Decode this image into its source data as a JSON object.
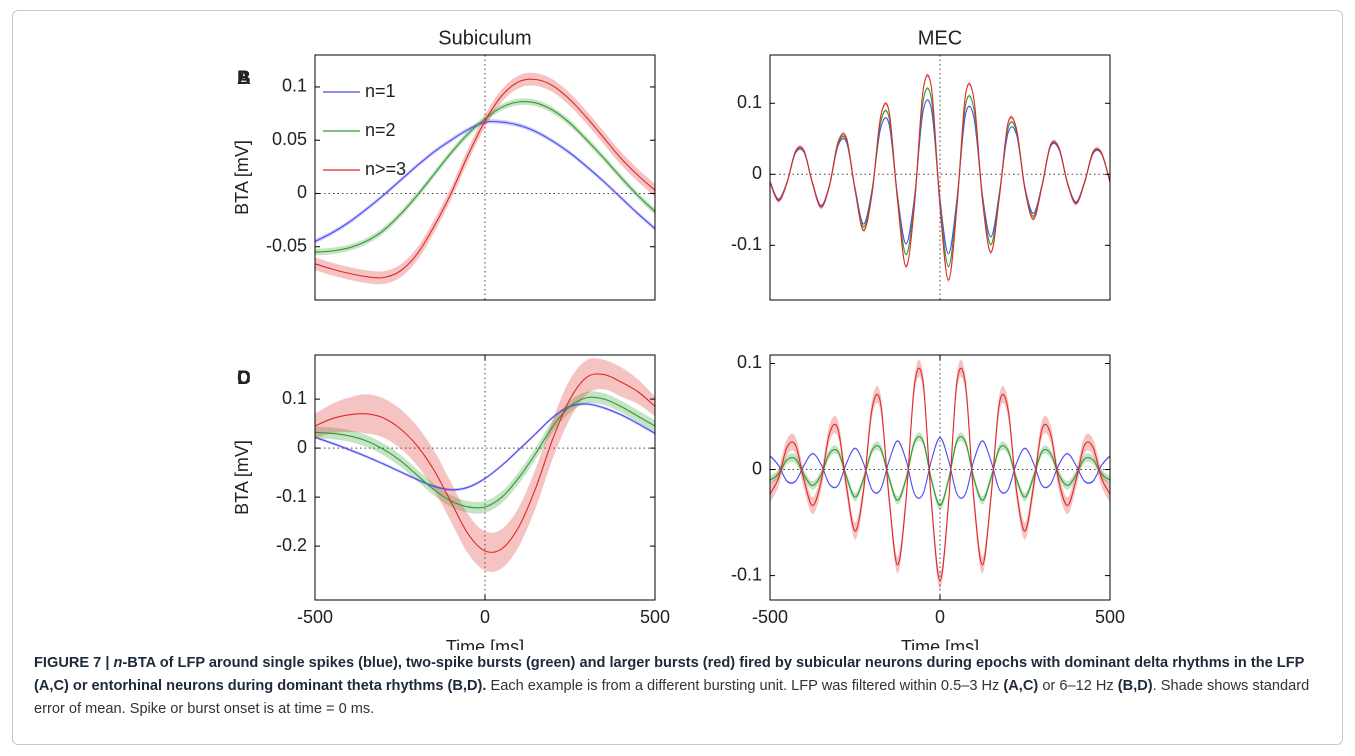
{
  "chart_data": [
    {
      "type": "line",
      "panel_label": "A",
      "title": "Subiculum",
      "ylabel": "BTA [mV]",
      "x": [
        -500,
        -450,
        -400,
        -350,
        -300,
        -250,
        -200,
        -150,
        -100,
        -50,
        0,
        50,
        100,
        150,
        200,
        250,
        300,
        350,
        400,
        450,
        500
      ],
      "xlim": [
        -500,
        500
      ],
      "ylim": [
        -0.1,
        0.13
      ],
      "yticks": [
        -0.05,
        0,
        0.05,
        0.1
      ],
      "zero_lines": true,
      "legend": "upper left",
      "series": [
        {
          "name": "n=1",
          "color": "#4b4bf5",
          "se": 0.002,
          "values": [
            -0.045,
            -0.037,
            -0.027,
            -0.015,
            -0.002,
            0.012,
            0.026,
            0.039,
            0.05,
            0.06,
            0.067,
            0.067,
            0.064,
            0.058,
            0.049,
            0.038,
            0.025,
            0.011,
            -0.004,
            -0.019,
            -0.033
          ]
        },
        {
          "name": "n=2",
          "color": "#2f9a2f",
          "se": 0.003,
          "values": [
            -0.055,
            -0.054,
            -0.051,
            -0.045,
            -0.035,
            -0.02,
            -0.002,
            0.018,
            0.038,
            0.056,
            0.07,
            0.081,
            0.086,
            0.085,
            0.078,
            0.066,
            0.05,
            0.033,
            0.015,
            -0.002,
            -0.017
          ]
        },
        {
          "name": "n>=3",
          "color": "#e02828",
          "se": 0.006,
          "values": [
            -0.066,
            -0.071,
            -0.075,
            -0.078,
            -0.079,
            -0.073,
            -0.057,
            -0.031,
            0.0,
            0.036,
            0.068,
            0.092,
            0.105,
            0.107,
            0.101,
            0.088,
            0.071,
            0.052,
            0.033,
            0.017,
            0.003
          ]
        }
      ]
    },
    {
      "type": "line",
      "panel_label": "B",
      "title": "MEC",
      "x": [
        -500,
        -475,
        -450,
        -425,
        -400,
        -375,
        -350,
        -325,
        -300,
        -275,
        -250,
        -225,
        -200,
        -175,
        -150,
        -125,
        -100,
        -75,
        -50,
        -25,
        0,
        25,
        50,
        75,
        100,
        125,
        150,
        175,
        200,
        225,
        250,
        275,
        300,
        325,
        350,
        375,
        400,
        425,
        450,
        475,
        500
      ],
      "xlim": [
        -500,
        500
      ],
      "ylim": [
        -0.177,
        0.168
      ],
      "yticks": [
        -0.1,
        0,
        0.1
      ],
      "zero_lines": true,
      "series": [
        {
          "color": "#4b4bf5",
          "se": 0.001,
          "values": [
            -0.01,
            -0.035,
            -0.011,
            0.03,
            0.031,
            -0.012,
            -0.044,
            -0.015,
            0.04,
            0.045,
            -0.019,
            -0.07,
            -0.022,
            0.064,
            0.071,
            -0.03,
            -0.098,
            -0.032,
            0.088,
            0.091,
            -0.035,
            -0.112,
            -0.034,
            0.084,
            0.079,
            -0.03,
            -0.088,
            -0.025,
            0.058,
            0.056,
            -0.019,
            -0.055,
            -0.015,
            0.039,
            0.035,
            -0.012,
            -0.039,
            -0.011,
            0.029,
            0.029,
            -0.01
          ]
        },
        {
          "color": "#2f9a2f",
          "se": 0.002,
          "values": [
            -0.011,
            -0.037,
            -0.012,
            0.032,
            0.033,
            -0.013,
            -0.046,
            -0.016,
            0.042,
            0.048,
            -0.021,
            -0.074,
            -0.025,
            0.072,
            0.08,
            -0.033,
            -0.113,
            -0.037,
            0.102,
            0.105,
            -0.04,
            -0.13,
            -0.039,
            0.097,
            0.091,
            -0.033,
            -0.099,
            -0.028,
            0.065,
            0.06,
            -0.021,
            -0.059,
            -0.016,
            0.041,
            0.037,
            -0.013,
            -0.041,
            -0.012,
            0.031,
            0.03,
            -0.011
          ]
        },
        {
          "color": "#e02828",
          "se": 0.003,
          "values": [
            -0.011,
            -0.037,
            -0.012,
            0.032,
            0.033,
            -0.013,
            -0.046,
            -0.016,
            0.045,
            0.051,
            -0.022,
            -0.079,
            -0.028,
            0.08,
            0.089,
            -0.037,
            -0.13,
            -0.043,
            0.117,
            0.121,
            -0.046,
            -0.149,
            -0.045,
            0.112,
            0.105,
            -0.037,
            -0.11,
            -0.031,
            0.072,
            0.064,
            -0.022,
            -0.063,
            -0.017,
            0.041,
            0.037,
            -0.013,
            -0.041,
            -0.012,
            0.031,
            0.03,
            -0.011
          ]
        }
      ]
    },
    {
      "type": "line",
      "panel_label": "C",
      "ylabel": "BTA [mV]",
      "xlabel": "Time [ms]",
      "x": [
        -500,
        -450,
        -400,
        -350,
        -300,
        -250,
        -200,
        -150,
        -100,
        -50,
        0,
        50,
        100,
        150,
        200,
        250,
        300,
        350,
        400,
        450,
        500
      ],
      "xlim": [
        -500,
        500
      ],
      "ylim": [
        -0.31,
        0.19
      ],
      "yticks": [
        -0.2,
        -0.1,
        0,
        0.1
      ],
      "xticks": [
        -500,
        0,
        500
      ],
      "zero_lines": true,
      "series": [
        {
          "color": "#4b4bf5",
          "se": 0.003,
          "values": [
            0.022,
            0.01,
            -0.003,
            -0.017,
            -0.032,
            -0.048,
            -0.064,
            -0.078,
            -0.085,
            -0.08,
            -0.062,
            -0.035,
            -0.003,
            0.03,
            0.063,
            0.085,
            0.09,
            0.082,
            0.068,
            0.05,
            0.03
          ]
        },
        {
          "color": "#2f9a2f",
          "se": 0.012,
          "values": [
            0.032,
            0.03,
            0.025,
            0.015,
            -0.002,
            -0.025,
            -0.055,
            -0.085,
            -0.108,
            -0.12,
            -0.12,
            -0.1,
            -0.06,
            -0.01,
            0.045,
            0.085,
            0.103,
            0.1,
            0.085,
            0.065,
            0.045
          ]
        },
        {
          "color": "#e02828",
          "se": [
            0.025,
            0.03,
            0.035,
            0.04,
            0.04,
            0.04,
            0.04,
            0.04,
            0.04,
            0.04,
            0.04,
            0.04,
            0.04,
            0.04,
            0.04,
            0.04,
            0.035,
            0.03,
            0.03,
            0.025,
            0.02
          ],
          "values": [
            0.045,
            0.06,
            0.068,
            0.07,
            0.062,
            0.04,
            0.005,
            -0.045,
            -0.11,
            -0.175,
            -0.21,
            -0.205,
            -0.16,
            -0.08,
            0.02,
            0.1,
            0.145,
            0.15,
            0.135,
            0.115,
            0.085
          ]
        }
      ]
    },
    {
      "type": "line",
      "panel_label": "D",
      "xlabel": "Time [ms]",
      "x": [
        -500,
        -475,
        -450,
        -425,
        -400,
        -375,
        -350,
        -325,
        -300,
        -275,
        -250,
        -225,
        -200,
        -175,
        -150,
        -125,
        -100,
        -75,
        -50,
        -25,
        0,
        25,
        50,
        75,
        100,
        125,
        150,
        175,
        200,
        225,
        250,
        275,
        300,
        325,
        350,
        375,
        400,
        425,
        450,
        475,
        500
      ],
      "xlim": [
        -500,
        500
      ],
      "ylim": [
        -0.123,
        0.108
      ],
      "yticks": [
        -0.1,
        0,
        0.1
      ],
      "xticks": [
        -500,
        0,
        500
      ],
      "zero_lines": true,
      "series": [
        {
          "color": "#4b4bf5",
          "se": 0.001,
          "values": [
            0.013,
            0.004,
            -0.011,
            -0.011,
            0.004,
            0.015,
            0.005,
            -0.014,
            -0.015,
            0.006,
            0.02,
            0.006,
            -0.019,
            -0.019,
            0.008,
            0.027,
            0.009,
            -0.023,
            -0.023,
            0.009,
            0.03,
            0.009,
            -0.023,
            -0.023,
            0.009,
            0.027,
            0.008,
            -0.019,
            -0.019,
            0.006,
            0.02,
            0.006,
            -0.015,
            -0.014,
            0.005,
            0.015,
            0.004,
            -0.011,
            -0.011,
            0.004,
            0.013
          ]
        },
        {
          "color": "#2f9a2f",
          "se": 0.004,
          "values": [
            -0.01,
            -0.004,
            0.009,
            0.01,
            -0.005,
            -0.015,
            -0.005,
            0.015,
            0.017,
            -0.007,
            -0.026,
            -0.009,
            0.018,
            0.02,
            -0.008,
            -0.029,
            -0.009,
            0.026,
            0.027,
            -0.01,
            -0.034,
            -0.01,
            0.027,
            0.026,
            -0.009,
            -0.029,
            -0.008,
            0.02,
            0.018,
            -0.009,
            -0.026,
            -0.007,
            0.017,
            0.015,
            -0.005,
            -0.015,
            -0.005,
            0.01,
            0.009,
            -0.004,
            -0.01
          ]
        },
        {
          "color": "#e02828",
          "se": 0.008,
          "values": [
            -0.023,
            -0.008,
            0.021,
            0.023,
            -0.01,
            -0.034,
            -0.012,
            0.034,
            0.038,
            -0.016,
            -0.058,
            -0.02,
            0.057,
            0.063,
            -0.026,
            -0.09,
            -0.029,
            0.08,
            0.083,
            -0.032,
            -0.105,
            -0.032,
            0.083,
            0.08,
            -0.029,
            -0.09,
            -0.026,
            0.063,
            0.057,
            -0.02,
            -0.058,
            -0.016,
            0.038,
            0.034,
            -0.012,
            -0.034,
            -0.01,
            0.023,
            0.021,
            -0.008,
            -0.023
          ]
        }
      ]
    }
  ],
  "caption": [
    {
      "text": "FIGURE 7 | ",
      "style": "bold"
    },
    {
      "text": "n",
      "style": "bold-italic"
    },
    {
      "text": "-BTA of LFP around single spikes (blue), two-spike bursts (green) and larger bursts (red) fired by subicular neurons during epochs with dominant delta rhythms in the LFP (A,C) or entorhinal neurons during dominant theta rhythms (B,D). ",
      "style": "bold"
    },
    {
      "text": "Each example is from a different bursting unit. LFP was filtered within 0.5–3 Hz ",
      "style": "normal"
    },
    {
      "text": "(A,C)",
      "style": "bold"
    },
    {
      "text": " or 6–12 Hz ",
      "style": "normal"
    },
    {
      "text": "(B,D)",
      "style": "bold"
    },
    {
      "text": ". Shade shows standard error of mean. Spike or burst onset is at time = 0 ms.",
      "style": "normal"
    }
  ]
}
